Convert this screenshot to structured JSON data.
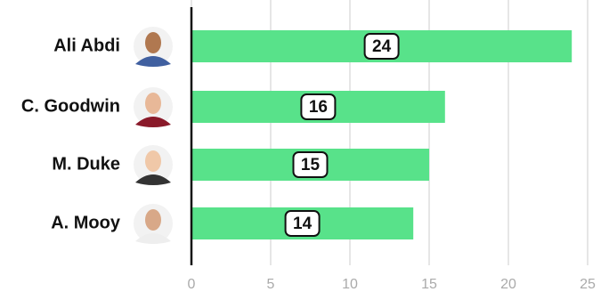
{
  "chart_data": {
    "type": "bar",
    "orientation": "horizontal",
    "categories": [
      "Ali Abdi",
      "C. Goodwin",
      "M. Duke",
      "A. Mooy"
    ],
    "values": [
      24,
      16,
      15,
      14
    ],
    "color": "#58e28a",
    "xlim": [
      0,
      25
    ],
    "xticks": [
      0,
      5,
      10,
      15,
      20,
      25
    ],
    "grid": true
  }
}
